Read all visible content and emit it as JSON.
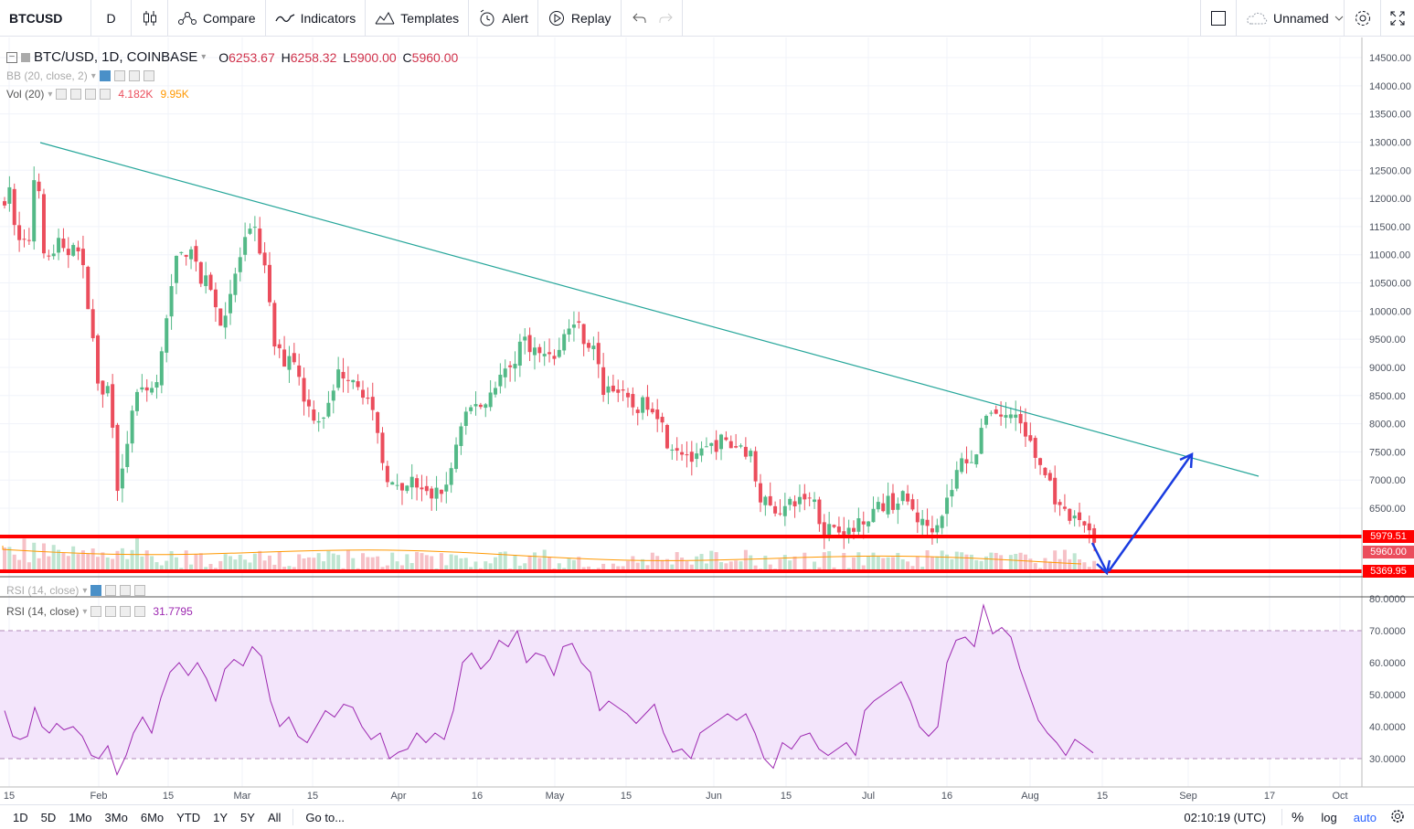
{
  "toolbar": {
    "symbol": "BTCUSD",
    "interval": "D",
    "compare": "Compare",
    "indicators": "Indicators",
    "templates": "Templates",
    "alert": "Alert",
    "replay": "Replay",
    "layout_name": "Unnamed"
  },
  "legend": {
    "title": "BTC/USD, 1D, COINBASE",
    "o_label": "O",
    "o_value": "6253.67",
    "h_label": "H",
    "h_value": "6258.32",
    "l_label": "L",
    "l_value": "5900.00",
    "c_label": "C",
    "c_value": "5960.00",
    "bb": "BB (20, close, 2)",
    "vol": "Vol (20)",
    "vol_value1": "4.182K",
    "vol_value2": "9.95K",
    "rsi_top": "RSI (14, close)",
    "rsi": "RSI (14, close)",
    "rsi_value": "31.7795"
  },
  "price_axis": [
    "14500.00",
    "14000.00",
    "13500.00",
    "13000.00",
    "12500.00",
    "12000.00",
    "11500.00",
    "11000.00",
    "10500.00",
    "10000.00",
    "9500.00",
    "9000.00",
    "8500.00",
    "8000.00",
    "7500.00",
    "7000.00",
    "6500.00"
  ],
  "price_tags": {
    "upper": "5979.51",
    "last": "5960.00",
    "lower": "5369.95"
  },
  "rsi_axis": [
    "80.0000",
    "70.0000",
    "60.0000",
    "50.0000",
    "40.0000",
    "30.0000"
  ],
  "time_axis": [
    "15",
    "Feb",
    "15",
    "Mar",
    "15",
    "Apr",
    "16",
    "May",
    "15",
    "Jun",
    "15",
    "Jul",
    "16",
    "Aug",
    "15",
    "Sep",
    "17",
    "Oct"
  ],
  "bottom": {
    "ranges": [
      "1D",
      "5D",
      "1Mo",
      "3Mo",
      "6Mo",
      "YTD",
      "1Y",
      "5Y",
      "All"
    ],
    "goto": "Go to...",
    "clock": "02:10:19 (UTC)",
    "percent": "%",
    "log": "log",
    "auto": "auto"
  },
  "colors": {
    "up": "#53b987",
    "down": "#eb4d5c",
    "trendline": "#26a69a",
    "support": "#ff0000",
    "arrow": "#1a3ce0",
    "rsi_line": "#9c27b0",
    "rsi_band": "#f3e5fb",
    "auto": "#2962ff"
  },
  "icons": [
    "candles-icon",
    "compare-icon",
    "indicators-icon",
    "templates-icon",
    "alert-icon",
    "replay-icon",
    "undo-icon",
    "redo-icon",
    "fullscreen-icon",
    "cloud-icon",
    "settings-icon"
  ]
}
